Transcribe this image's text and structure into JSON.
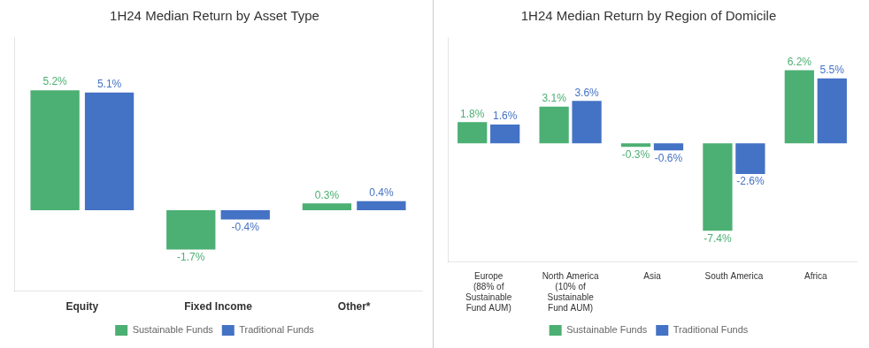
{
  "chart_data": [
    {
      "type": "bar",
      "title": "1H24 Median Return by Asset Type",
      "categories": [
        "Equity",
        "Fixed Income",
        "Other*"
      ],
      "series": [
        {
          "name": "Sustainable Funds",
          "color": "#4CAF73",
          "values": [
            5.2,
            -1.7,
            0.3
          ],
          "value_labels": [
            "5.2%",
            "-1.7%",
            "0.3%"
          ]
        },
        {
          "name": "Traditional Funds",
          "color": "#4472C4",
          "values": [
            5.1,
            -0.4,
            0.4
          ],
          "value_labels": [
            "5.1%",
            "-0.4%",
            "0.4%"
          ]
        }
      ],
      "ylim": [
        -3.5,
        7.5
      ],
      "grid": false,
      "legend": "bottom",
      "data_labels": true,
      "tick_labels": "x"
    },
    {
      "type": "bar",
      "title": "1H24 Median Return by Region of Domicile",
      "categories": [
        "Europe\n(88% of\nSustainable\nFund AUM)",
        "North America\n(10% of\nSustainable\nFund AUM)",
        "Asia",
        "South America",
        "Africa"
      ],
      "series": [
        {
          "name": "Sustainable Funds",
          "color": "#4CAF73",
          "values": [
            1.8,
            3.1,
            -0.3,
            -7.4,
            6.2
          ],
          "value_labels": [
            "1.8%",
            "3.1%",
            "-0.3%",
            "-7.4%",
            "6.2%"
          ]
        },
        {
          "name": "Traditional Funds",
          "color": "#4472C4",
          "values": [
            1.6,
            3.6,
            -0.6,
            -2.6,
            5.5
          ],
          "value_labels": [
            "1.6%",
            "3.6%",
            "-0.6%",
            "-2.6%",
            "5.5%"
          ]
        }
      ],
      "ylim": [
        -10,
        9
      ],
      "grid": false,
      "legend": "bottom",
      "data_labels": true,
      "tick_labels": "x"
    }
  ]
}
